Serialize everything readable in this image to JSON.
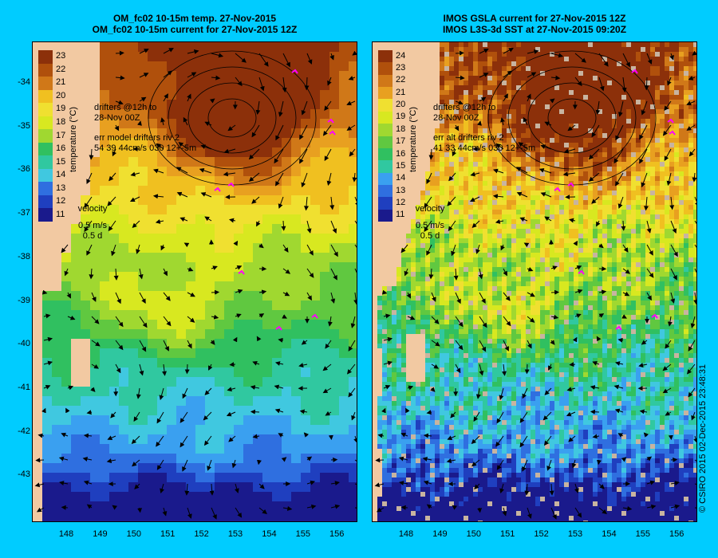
{
  "left": {
    "title1": "OM_fc02 10-15m temp. 27-Nov-2015",
    "title2": "OM_fc02 10-15m current for 27-Nov-2015 12Z",
    "drifters": "drifters @12h to",
    "drifters2": "28-Nov 00Z",
    "err1": "err model drifters riv 2",
    "err2": "54 39 44cm/s 030 12+-5m",
    "cbar_ticks": [
      "23",
      "22",
      "21",
      "20",
      "19",
      "18",
      "17",
      "16",
      "15",
      "14",
      "13",
      "12",
      "11"
    ]
  },
  "right": {
    "title1": "IMOS GSLA current for 27-Nov-2015 12Z",
    "title2": "IMOS L3S-3d SST at 27-Nov-2015 09:20Z",
    "drifters": "drifters @12h to",
    "drifters2": "28-Nov 00Z",
    "err1": "err alt drifters riv 2",
    "err2": "41 33 44cm/s 030 12+-5m",
    "cbar_ticks": [
      "24",
      "23",
      "22",
      "21",
      "20",
      "19",
      "18",
      "17",
      "16",
      "15",
      "14",
      "13",
      "12",
      "11"
    ]
  },
  "cbar_title": "temperature (°C)",
  "velocity": {
    "label": "velocity",
    "speed": "0.5 m/s",
    "time": "0.5 d"
  },
  "y_ticks": [
    "-34",
    "-35",
    "-36",
    "-37",
    "-38",
    "-39",
    "-40",
    "-41",
    "-42",
    "-43"
  ],
  "x_ticks": [
    "148",
    "149",
    "150",
    "151",
    "152",
    "153",
    "154",
    "155",
    "156"
  ],
  "credit": "© CSIRO 2015   02-Dec-2015 23:48:31",
  "colors": {
    "background": "#00ccff",
    "land": "#f2c9a2"
  }
}
